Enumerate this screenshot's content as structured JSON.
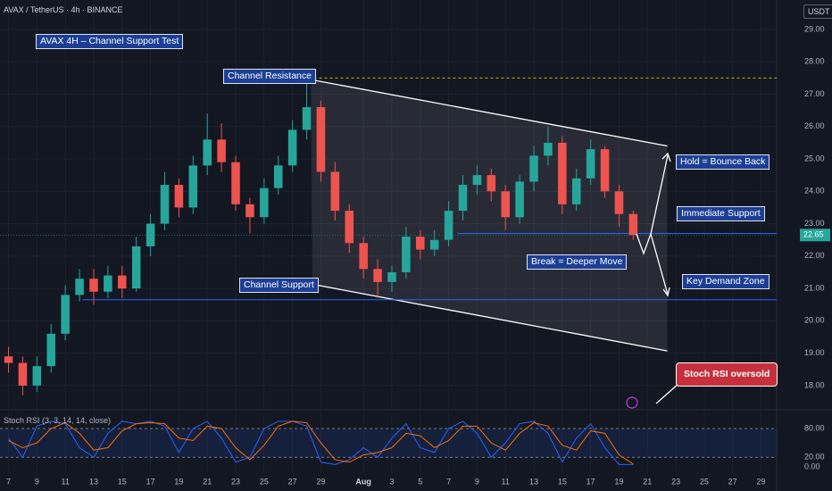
{
  "chart_data": {
    "type": "candlestick",
    "title": "AVAX / TetherUS · 4h · BINANCE",
    "currency": "USDT",
    "last_price": 22.65,
    "xlim": [
      -0.6,
      54.1
    ],
    "xticks": [
      {
        "value": 0,
        "label": "7"
      },
      {
        "value": 2,
        "label": "9"
      },
      {
        "value": 4,
        "label": "11"
      },
      {
        "value": 6,
        "label": "13"
      },
      {
        "value": 8,
        "label": "15"
      },
      {
        "value": 10,
        "label": "17"
      },
      {
        "value": 12,
        "label": "19"
      },
      {
        "value": 14,
        "label": "21"
      },
      {
        "value": 16,
        "label": "23"
      },
      {
        "value": 18,
        "label": "25"
      },
      {
        "value": 20,
        "label": "27"
      },
      {
        "value": 22,
        "label": "29"
      },
      {
        "value": 25,
        "label": "Aug"
      },
      {
        "value": 27,
        "label": "3"
      },
      {
        "value": 29,
        "label": "5"
      },
      {
        "value": 31,
        "label": "7"
      },
      {
        "value": 33,
        "label": "9"
      },
      {
        "value": 35,
        "label": "11"
      },
      {
        "value": 37,
        "label": "13"
      },
      {
        "value": 39,
        "label": "15"
      },
      {
        "value": 41,
        "label": "17"
      },
      {
        "value": 43,
        "label": "19"
      },
      {
        "value": 45,
        "label": "21"
      },
      {
        "value": 47,
        "label": "23"
      },
      {
        "value": 49,
        "label": "25"
      },
      {
        "value": 51,
        "label": "27"
      },
      {
        "value": 53,
        "label": "29"
      }
    ],
    "ylim": [
      17.28,
      29.91
    ],
    "yticks": [
      {
        "value": 18,
        "label": "18.00"
      },
      {
        "value": 19,
        "label": "19.00"
      },
      {
        "value": 20,
        "label": "20.00"
      },
      {
        "value": 21,
        "label": "21.00"
      },
      {
        "value": 22,
        "label": "22.00"
      },
      {
        "value": 23,
        "label": "23.00"
      },
      {
        "value": 24,
        "label": "24.00"
      },
      {
        "value": 25,
        "label": "25.00"
      },
      {
        "value": 26,
        "label": "26.00"
      },
      {
        "value": 27,
        "label": "27.00"
      },
      {
        "value": 28,
        "label": "28.00"
      },
      {
        "value": 29,
        "label": "29.00"
      }
    ],
    "up_color": "#26a69a",
    "down_color": "#ef5350",
    "x": [
      0,
      1,
      2,
      3,
      4,
      5,
      6,
      7,
      8,
      9,
      10,
      11,
      12,
      13,
      14,
      15,
      16,
      17,
      18,
      19,
      20,
      21,
      22,
      23,
      24,
      25,
      26,
      27,
      28,
      29,
      30,
      31,
      32,
      33,
      34,
      35,
      36,
      37,
      38,
      39,
      40,
      41,
      42,
      43,
      44
    ],
    "open": [
      18.9,
      18.7,
      18.0,
      18.6,
      19.6,
      20.8,
      21.3,
      20.9,
      21.4,
      21.0,
      22.3,
      23.0,
      24.2,
      23.5,
      24.8,
      25.6,
      24.9,
      23.6,
      23.2,
      24.1,
      24.8,
      25.9,
      26.6,
      24.6,
      23.4,
      22.4,
      21.6,
      21.2,
      21.5,
      22.6,
      22.2,
      22.5,
      23.4,
      24.2,
      24.5,
      24.0,
      23.2,
      24.3,
      25.1,
      25.5,
      23.6,
      24.4,
      25.3,
      24.0,
      23.3
    ],
    "high": [
      19.2,
      18.9,
      18.9,
      19.9,
      21.1,
      21.6,
      21.6,
      21.7,
      21.7,
      22.6,
      23.3,
      24.6,
      24.4,
      25.1,
      26.4,
      26.1,
      25.1,
      23.8,
      24.4,
      25.1,
      26.2,
      27.4,
      26.8,
      24.9,
      23.6,
      22.6,
      21.9,
      21.7,
      22.9,
      22.8,
      22.8,
      23.7,
      24.5,
      24.8,
      24.7,
      24.2,
      24.5,
      25.4,
      26.0,
      25.7,
      24.7,
      25.6,
      25.4,
      24.2,
      23.4
    ],
    "low": [
      18.4,
      17.7,
      17.8,
      18.4,
      19.4,
      20.6,
      20.5,
      20.7,
      20.7,
      20.9,
      22.0,
      22.8,
      23.2,
      23.3,
      24.5,
      24.6,
      23.4,
      22.7,
      23.0,
      23.9,
      24.6,
      25.6,
      24.3,
      23.1,
      22.1,
      21.3,
      20.7,
      20.9,
      21.3,
      21.9,
      22.0,
      22.3,
      23.1,
      23.9,
      23.7,
      22.8,
      23.0,
      24.0,
      24.8,
      23.3,
      23.4,
      24.2,
      23.8,
      22.9,
      22.5
    ],
    "close": [
      18.7,
      18.0,
      18.6,
      19.6,
      20.8,
      21.3,
      20.9,
      21.4,
      21.0,
      22.3,
      23.0,
      24.2,
      23.5,
      24.8,
      25.6,
      24.9,
      23.6,
      23.2,
      24.1,
      24.8,
      25.9,
      26.6,
      24.6,
      23.4,
      22.4,
      21.6,
      21.2,
      21.5,
      22.6,
      22.2,
      22.5,
      23.4,
      24.2,
      24.5,
      24.0,
      23.2,
      24.3,
      25.1,
      25.5,
      23.6,
      24.4,
      25.3,
      24.0,
      23.3,
      22.65
    ],
    "channel": {
      "upper": {
        "x": [
          21.3,
          46.4
        ],
        "y": [
          27.45,
          25.4
        ]
      },
      "lower": {
        "x": [
          21.4,
          46.4
        ],
        "y": [
          21.13,
          19.07
        ]
      }
    },
    "levels": [
      {
        "value": 27.5,
        "from": 21.5,
        "color": "#c8b400",
        "dashed": true
      },
      {
        "value": 22.7,
        "from": 31.6,
        "color": "#2962ff",
        "dashed": false
      },
      {
        "value": 20.65,
        "from": 5.2,
        "color": "#2962ff",
        "dashed": false
      }
    ],
    "annotations": [
      "AVAX 4H – Channel Support Test",
      "Channel Resistance",
      "Channel Support",
      "Hold = Bounce Back",
      "Immediate Support",
      "Break = Deeper Move",
      "Key Demand Zone",
      "Stoch RSI oversold"
    ],
    "stoch": {
      "title": "Stoch RSI (3, 3, 14, 14, close)",
      "ylim": [
        -13,
        113.5
      ],
      "yticks": [
        {
          "value": 0,
          "label": "0.00"
        },
        {
          "value": 20,
          "label": "20.00"
        },
        {
          "value": 80,
          "label": "80.00"
        }
      ],
      "series": [
        {
          "color": "#2962ff",
          "values": [
            60,
            20,
            85,
            95,
            90,
            40,
            20,
            70,
            95,
            90,
            95,
            85,
            30,
            80,
            95,
            60,
            10,
            20,
            80,
            95,
            95,
            85,
            10,
            5,
            15,
            40,
            20,
            60,
            90,
            40,
            30,
            80,
            95,
            70,
            20,
            50,
            90,
            95,
            70,
            10,
            60,
            90,
            40,
            5,
            5
          ]
        },
        {
          "color": "#ff6d00",
          "values": [
            55,
            40,
            50,
            80,
            92,
            70,
            35,
            40,
            75,
            90,
            92,
            90,
            60,
            55,
            85,
            80,
            40,
            15,
            45,
            85,
            95,
            92,
            50,
            15,
            10,
            25,
            30,
            40,
            70,
            65,
            40,
            55,
            85,
            85,
            50,
            35,
            70,
            92,
            85,
            45,
            35,
            75,
            70,
            25,
            6
          ]
        }
      ]
    }
  }
}
